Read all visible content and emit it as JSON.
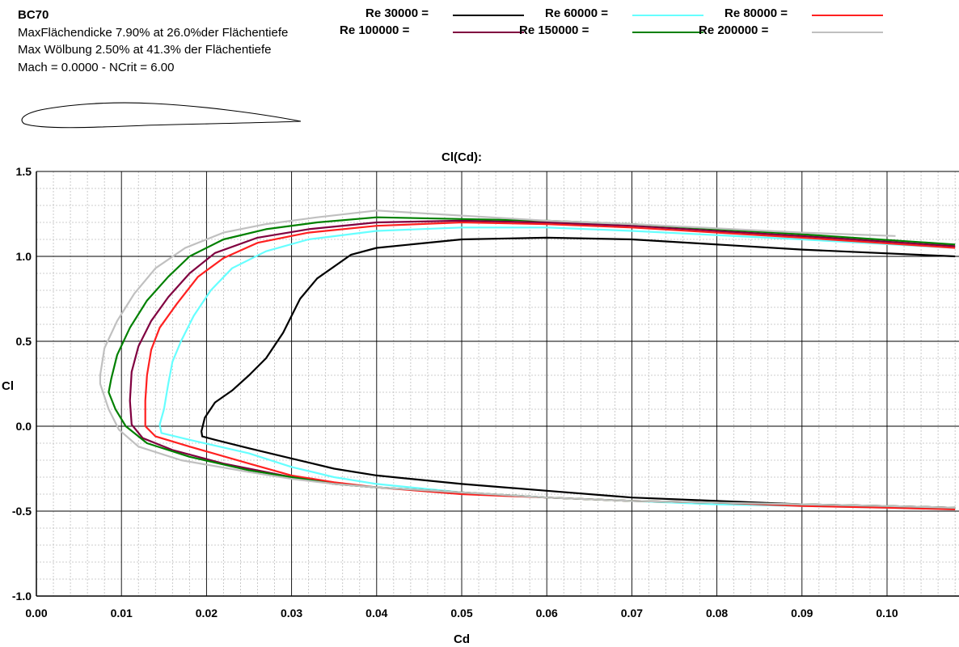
{
  "header": {
    "name": "BC70",
    "line1": "MaxFlächendicke 7.90% at 26.0%der Flächentiefe",
    "line2": "Max Wölbung 2.50% at 41.3% der Flächentiefe",
    "line3": "Mach = 0.0000 - NCrit = 6.00"
  },
  "chart_data": {
    "type": "line",
    "title": "Cl(Cd):",
    "xlabel": "Cd",
    "ylabel": "Cl",
    "xlim": [
      0.0,
      0.108
    ],
    "ylim": [
      -1.0,
      1.5
    ],
    "xticks": [
      "0.00",
      "0.01",
      "0.02",
      "0.03",
      "0.04",
      "0.05",
      "0.06",
      "0.07",
      "0.08",
      "0.09",
      "0.10"
    ],
    "yticks": [
      "1.5",
      "1.0",
      "0.5",
      "0.0",
      "-0.5",
      "-1.0"
    ],
    "grid": true,
    "legend_position": "top",
    "series": [
      {
        "name": "Re 30000 =",
        "color": "#000000",
        "points": [
          [
            0.108,
            1.0
          ],
          [
            0.09,
            1.04
          ],
          [
            0.07,
            1.1
          ],
          [
            0.06,
            1.11
          ],
          [
            0.05,
            1.1
          ],
          [
            0.04,
            1.05
          ],
          [
            0.037,
            1.01
          ],
          [
            0.033,
            0.87
          ],
          [
            0.031,
            0.75
          ],
          [
            0.029,
            0.55
          ],
          [
            0.027,
            0.4
          ],
          [
            0.025,
            0.3
          ],
          [
            0.023,
            0.21
          ],
          [
            0.021,
            0.14
          ],
          [
            0.0198,
            0.05
          ],
          [
            0.0194,
            -0.03
          ],
          [
            0.0195,
            -0.06
          ],
          [
            0.021,
            -0.08
          ],
          [
            0.025,
            -0.13
          ],
          [
            0.03,
            -0.19
          ],
          [
            0.035,
            -0.25
          ],
          [
            0.04,
            -0.29
          ],
          [
            0.05,
            -0.34
          ],
          [
            0.06,
            -0.38
          ],
          [
            0.07,
            -0.42
          ],
          [
            0.08,
            -0.44
          ],
          [
            0.09,
            -0.46
          ],
          [
            0.1,
            -0.47
          ],
          [
            0.108,
            -0.48
          ]
        ]
      },
      {
        "name": "Re 60000 =",
        "color": "#66ffff",
        "points": [
          [
            0.108,
            1.05
          ],
          [
            0.09,
            1.1
          ],
          [
            0.07,
            1.15
          ],
          [
            0.06,
            1.17
          ],
          [
            0.05,
            1.17
          ],
          [
            0.04,
            1.15
          ],
          [
            0.032,
            1.1
          ],
          [
            0.027,
            1.03
          ],
          [
            0.023,
            0.93
          ],
          [
            0.0205,
            0.8
          ],
          [
            0.0185,
            0.65
          ],
          [
            0.017,
            0.5
          ],
          [
            0.016,
            0.38
          ],
          [
            0.0155,
            0.25
          ],
          [
            0.015,
            0.1
          ],
          [
            0.0145,
            0.01
          ],
          [
            0.0147,
            -0.04
          ],
          [
            0.018,
            -0.08
          ],
          [
            0.025,
            -0.16
          ],
          [
            0.03,
            -0.24
          ],
          [
            0.035,
            -0.3
          ],
          [
            0.04,
            -0.34
          ],
          [
            0.05,
            -0.39
          ],
          [
            0.06,
            -0.42
          ],
          [
            0.07,
            -0.44
          ],
          [
            0.08,
            -0.46
          ],
          [
            0.09,
            -0.47
          ],
          [
            0.1,
            -0.48
          ],
          [
            0.108,
            -0.49
          ]
        ]
      },
      {
        "name": "Re 80000 =",
        "color": "#ff2020",
        "points": [
          [
            0.108,
            1.05
          ],
          [
            0.09,
            1.11
          ],
          [
            0.07,
            1.17
          ],
          [
            0.06,
            1.19
          ],
          [
            0.05,
            1.2
          ],
          [
            0.04,
            1.18
          ],
          [
            0.032,
            1.14
          ],
          [
            0.026,
            1.08
          ],
          [
            0.022,
            0.99
          ],
          [
            0.019,
            0.88
          ],
          [
            0.0165,
            0.72
          ],
          [
            0.0145,
            0.58
          ],
          [
            0.0135,
            0.45
          ],
          [
            0.013,
            0.3
          ],
          [
            0.0128,
            0.15
          ],
          [
            0.0128,
            0.0
          ],
          [
            0.014,
            -0.06
          ],
          [
            0.018,
            -0.12
          ],
          [
            0.025,
            -0.22
          ],
          [
            0.03,
            -0.29
          ],
          [
            0.035,
            -0.33
          ],
          [
            0.04,
            -0.36
          ],
          [
            0.05,
            -0.4
          ],
          [
            0.06,
            -0.42
          ],
          [
            0.07,
            -0.44
          ],
          [
            0.08,
            -0.45
          ],
          [
            0.09,
            -0.47
          ],
          [
            0.1,
            -0.48
          ],
          [
            0.108,
            -0.49
          ]
        ]
      },
      {
        "name": "Re 100000 =",
        "color": "#800040",
        "points": [
          [
            0.108,
            1.06
          ],
          [
            0.09,
            1.12
          ],
          [
            0.07,
            1.18
          ],
          [
            0.06,
            1.2
          ],
          [
            0.05,
            1.21
          ],
          [
            0.04,
            1.2
          ],
          [
            0.032,
            1.16
          ],
          [
            0.026,
            1.11
          ],
          [
            0.021,
            1.02
          ],
          [
            0.018,
            0.9
          ],
          [
            0.0155,
            0.76
          ],
          [
            0.0135,
            0.62
          ],
          [
            0.012,
            0.47
          ],
          [
            0.0112,
            0.32
          ],
          [
            0.011,
            0.15
          ],
          [
            0.0112,
            0.01
          ],
          [
            0.0125,
            -0.07
          ],
          [
            0.016,
            -0.14
          ],
          [
            0.022,
            -0.22
          ],
          [
            0.03,
            -0.3
          ],
          [
            0.035,
            -0.34
          ],
          [
            0.04,
            -0.36
          ],
          [
            0.05,
            -0.39
          ],
          [
            0.06,
            -0.42
          ],
          [
            0.07,
            -0.44
          ],
          [
            0.08,
            -0.45
          ],
          [
            0.09,
            -0.46
          ],
          [
            0.1,
            -0.47
          ],
          [
            0.108,
            -0.48
          ]
        ]
      },
      {
        "name": "Re 150000 =",
        "color": "#008000",
        "points": [
          [
            0.108,
            1.07
          ],
          [
            0.09,
            1.13
          ],
          [
            0.07,
            1.19
          ],
          [
            0.06,
            1.21
          ],
          [
            0.05,
            1.22
          ],
          [
            0.04,
            1.23
          ],
          [
            0.033,
            1.2
          ],
          [
            0.027,
            1.16
          ],
          [
            0.022,
            1.1
          ],
          [
            0.018,
            1.0
          ],
          [
            0.0155,
            0.88
          ],
          [
            0.013,
            0.74
          ],
          [
            0.011,
            0.58
          ],
          [
            0.0095,
            0.42
          ],
          [
            0.0088,
            0.28
          ],
          [
            0.0085,
            0.2
          ],
          [
            0.0093,
            0.1
          ],
          [
            0.0105,
            0.0
          ],
          [
            0.013,
            -0.1
          ],
          [
            0.018,
            -0.18
          ],
          [
            0.025,
            -0.26
          ],
          [
            0.03,
            -0.3
          ],
          [
            0.035,
            -0.34
          ],
          [
            0.04,
            -0.36
          ],
          [
            0.05,
            -0.39
          ],
          [
            0.06,
            -0.42
          ],
          [
            0.07,
            -0.44
          ],
          [
            0.08,
            -0.45
          ],
          [
            0.09,
            -0.46
          ],
          [
            0.1,
            -0.47
          ],
          [
            0.108,
            -0.48
          ]
        ]
      },
      {
        "name": "Re 200000 =",
        "color": "#c0c0c0",
        "points": [
          [
            0.101,
            1.12
          ],
          [
            0.09,
            1.14
          ],
          [
            0.07,
            1.19
          ],
          [
            0.06,
            1.21
          ],
          [
            0.05,
            1.24
          ],
          [
            0.04,
            1.27
          ],
          [
            0.033,
            1.23
          ],
          [
            0.027,
            1.19
          ],
          [
            0.022,
            1.14
          ],
          [
            0.0175,
            1.05
          ],
          [
            0.014,
            0.93
          ],
          [
            0.0115,
            0.78
          ],
          [
            0.0095,
            0.62
          ],
          [
            0.008,
            0.46
          ],
          [
            0.0075,
            0.3
          ],
          [
            0.0075,
            0.25
          ],
          [
            0.0085,
            0.1
          ],
          [
            0.0097,
            -0.02
          ],
          [
            0.012,
            -0.12
          ],
          [
            0.017,
            -0.2
          ],
          [
            0.025,
            -0.27
          ],
          [
            0.03,
            -0.31
          ],
          [
            0.035,
            -0.34
          ],
          [
            0.04,
            -0.36
          ],
          [
            0.05,
            -0.39
          ],
          [
            0.06,
            -0.42
          ],
          [
            0.07,
            -0.44
          ],
          [
            0.08,
            -0.45
          ],
          [
            0.09,
            -0.46
          ],
          [
            0.1,
            -0.47
          ],
          [
            0.108,
            -0.48
          ]
        ]
      }
    ]
  }
}
